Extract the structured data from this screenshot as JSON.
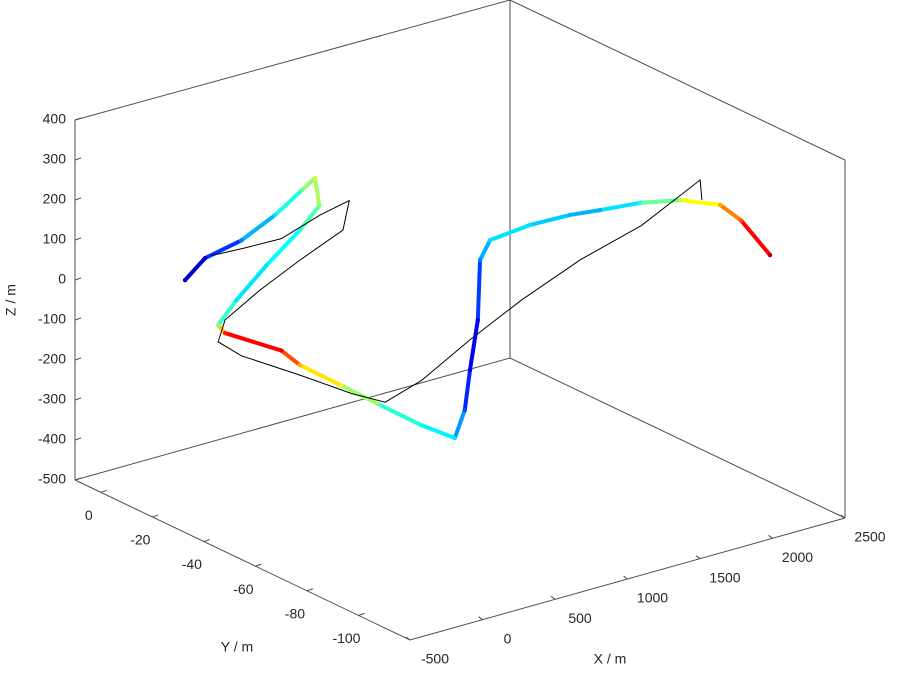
{
  "chart_data": {
    "type": "line3d",
    "xlabel": "X / m",
    "ylabel": "Y / m",
    "zlabel": "Z / m",
    "xlim": [
      -500,
      2500
    ],
    "ylim": [
      -120,
      10
    ],
    "zlim": [
      -500,
      400
    ],
    "xticks": [
      -500,
      0,
      500,
      1000,
      1500,
      2000,
      2500
    ],
    "yticks": [
      0,
      -20,
      -40,
      -60,
      -80,
      -100
    ],
    "zticks": [
      -500,
      -400,
      -300,
      -200,
      -100,
      0,
      100,
      200,
      300,
      400
    ],
    "colormap": "jet",
    "clim": [
      0,
      1
    ],
    "series": [
      {
        "x": [
          28,
          166,
          292,
          418,
          475,
          463,
          367,
          127,
          -230,
          -437,
          -437,
          -389,
          -125,
          -104,
          58,
          217,
          379,
          502,
          571,
          607,
          661,
          676,
          745,
          1021,
          1297,
          1504,
          1780,
          2056,
          2332,
          2353,
          2445
        ],
        "y": [
          -3,
          -3,
          -10,
          -16,
          -23,
          -29,
          -36,
          -42,
          -49,
          -49,
          -42,
          -42,
          -49,
          -55,
          -62,
          -68,
          -75,
          -81,
          -81,
          -81,
          -81,
          -81,
          -81,
          -81,
          -81,
          -81,
          -81,
          -81,
          -81,
          -88,
          -94
        ],
        "z": [
          -14,
          27,
          80,
          149,
          226,
          277,
          239,
          221,
          190,
          124,
          41,
          16,
          -33,
          -53,
          -99,
          -145,
          -191,
          -217,
          -154,
          -57,
          62,
          210,
          253,
          263,
          260,
          251,
          241,
          220,
          180,
          160,
          83
        ],
        "c": [
          0.05,
          0.1,
          0.25,
          0.35,
          0.45,
          0.58,
          0.5,
          0.4,
          0.35,
          0.35,
          0.5,
          0.85,
          0.9,
          0.7,
          0.6,
          0.45,
          0.38,
          0.35,
          0.2,
          0.12,
          0.12,
          0.25,
          0.35,
          0.35,
          0.3,
          0.3,
          0.4,
          0.55,
          0.7,
          0.8,
          0.95
        ]
      },
      {
        "color": "#000000",
        "x": [
          85,
          211,
          336,
          497,
          574,
          424,
          127,
          -149,
          -389,
          -437,
          -401,
          -104,
          127,
          253,
          379,
          607,
          835,
          1135,
          1432,
          1732,
          1744
        ],
        "y": [
          -10,
          -16,
          -23,
          -29,
          -36,
          -42,
          -42,
          -42,
          -42,
          -42,
          -49,
          -55,
          -62,
          -68,
          -75,
          -81,
          -88,
          -94,
          -101,
          -107,
          -107
        ],
        "z": [
          63,
          88,
          120,
          181,
          231,
          191,
          146,
          99,
          49,
          -1,
          -18,
          -78,
          -126,
          -142,
          -79,
          18,
          115,
          204,
          281,
          383,
          332
        ]
      }
    ]
  }
}
